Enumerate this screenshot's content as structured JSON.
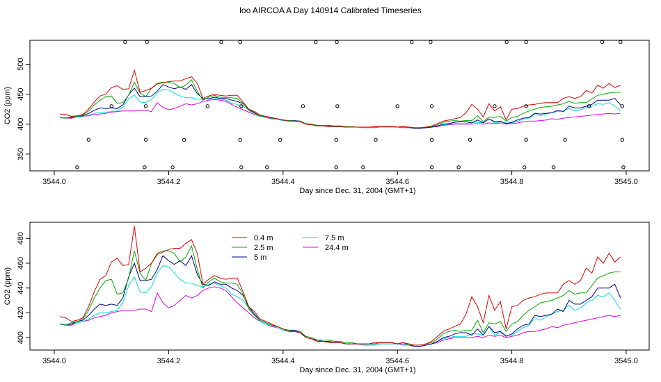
{
  "title": "loo AIRCOA A  Day 140914  Calibrated Timeseries",
  "chart_data": [
    {
      "type": "scatter",
      "panel": "top",
      "xlabel": "Day since Dec. 31, 2004 (GMT+1)",
      "ylabel": "CO2 (ppm)",
      "xlim": [
        3544.0,
        3545.0
      ],
      "ylim": [
        322,
        540
      ],
      "xticks": [
        "3544.0",
        "3544.2",
        "3544.4",
        "3544.6",
        "3544.8",
        "3545.0"
      ],
      "yticks": [
        "350",
        "400",
        "450",
        "500"
      ],
      "markers": [
        {
          "x": 3544.124,
          "y": 537
        },
        {
          "x": 3544.162,
          "y": 537
        },
        {
          "x": 3544.292,
          "y": 537
        },
        {
          "x": 3544.325,
          "y": 537
        },
        {
          "x": 3544.457,
          "y": 537
        },
        {
          "x": 3544.494,
          "y": 537
        },
        {
          "x": 3544.625,
          "y": 537
        },
        {
          "x": 3544.658,
          "y": 537
        },
        {
          "x": 3544.791,
          "y": 537
        },
        {
          "x": 3544.825,
          "y": 537
        },
        {
          "x": 3544.958,
          "y": 537
        },
        {
          "x": 3544.99,
          "y": 537
        },
        {
          "x": 3544.1,
          "y": 430
        },
        {
          "x": 3544.16,
          "y": 430
        },
        {
          "x": 3544.268,
          "y": 430
        },
        {
          "x": 3544.327,
          "y": 430
        },
        {
          "x": 3544.435,
          "y": 430
        },
        {
          "x": 3544.495,
          "y": 430
        },
        {
          "x": 3544.6,
          "y": 430
        },
        {
          "x": 3544.66,
          "y": 430
        },
        {
          "x": 3544.77,
          "y": 430
        },
        {
          "x": 3544.825,
          "y": 430
        },
        {
          "x": 3544.935,
          "y": 430
        },
        {
          "x": 3544.993,
          "y": 430
        },
        {
          "x": 3544.06,
          "y": 374
        },
        {
          "x": 3544.16,
          "y": 374
        },
        {
          "x": 3544.227,
          "y": 374
        },
        {
          "x": 3544.325,
          "y": 374
        },
        {
          "x": 3544.395,
          "y": 374
        },
        {
          "x": 3544.493,
          "y": 374
        },
        {
          "x": 3544.562,
          "y": 374
        },
        {
          "x": 3544.66,
          "y": 374
        },
        {
          "x": 3544.727,
          "y": 374
        },
        {
          "x": 3544.825,
          "y": 374
        },
        {
          "x": 3544.893,
          "y": 374
        },
        {
          "x": 3544.993,
          "y": 374
        },
        {
          "x": 3544.04,
          "y": 328
        },
        {
          "x": 3544.158,
          "y": 328
        },
        {
          "x": 3544.207,
          "y": 328
        },
        {
          "x": 3544.327,
          "y": 328
        },
        {
          "x": 3544.372,
          "y": 328
        },
        {
          "x": 3544.493,
          "y": 328
        },
        {
          "x": 3544.54,
          "y": 328
        },
        {
          "x": 3544.66,
          "y": 328
        },
        {
          "x": 3544.707,
          "y": 328
        },
        {
          "x": 3544.822,
          "y": 328
        },
        {
          "x": 3544.873,
          "y": 328
        },
        {
          "x": 3544.995,
          "y": 328
        }
      ]
    },
    {
      "type": "line",
      "panel": "bottom",
      "xlabel": "Day since Dec. 31, 2004 (GMT+1)",
      "ylabel": "CO2 (ppm)",
      "xlim": [
        3544.0,
        3545.0
      ],
      "ylim": [
        390,
        493
      ],
      "xticks": [
        "3544.0",
        "3544.2",
        "3544.4",
        "3544.6",
        "3544.8",
        "3545.0"
      ],
      "yticks": [
        "400",
        "420",
        "440",
        "460",
        "480"
      ],
      "legend": "top-center",
      "x": [
        3544.01,
        3544.02,
        3544.03,
        3544.04,
        3544.05,
        3544.06,
        3544.07,
        3544.08,
        3544.09,
        3544.1,
        3544.11,
        3544.12,
        3544.13,
        3544.14,
        3544.15,
        3544.16,
        3544.17,
        3544.18,
        3544.19,
        3544.2,
        3544.21,
        3544.22,
        3544.23,
        3544.24,
        3544.25,
        3544.26,
        3544.27,
        3544.28,
        3544.29,
        3544.3,
        3544.31,
        3544.32,
        3544.33,
        3544.34,
        3544.35,
        3544.36,
        3544.37,
        3544.38,
        3544.39,
        3544.4,
        3544.41,
        3544.42,
        3544.43,
        3544.44,
        3544.45,
        3544.46,
        3544.47,
        3544.48,
        3544.49,
        3544.5,
        3544.51,
        3544.52,
        3544.53,
        3544.54,
        3544.55,
        3544.56,
        3544.57,
        3544.58,
        3544.59,
        3544.6,
        3544.61,
        3544.62,
        3544.63,
        3544.64,
        3544.65,
        3544.66,
        3544.67,
        3544.68,
        3544.69,
        3544.7,
        3544.71,
        3544.72,
        3544.73,
        3544.74,
        3544.75,
        3544.76,
        3544.77,
        3544.78,
        3544.79,
        3544.8,
        3544.81,
        3544.82,
        3544.83,
        3544.84,
        3544.85,
        3544.86,
        3544.87,
        3544.88,
        3544.89,
        3544.9,
        3544.91,
        3544.92,
        3544.93,
        3544.94,
        3544.95,
        3544.96,
        3544.97,
        3544.98,
        3544.99
      ],
      "series": [
        {
          "name": "0.4 m",
          "color": "#dd0000",
          "values": [
            417,
            416,
            413,
            414,
            416,
            425,
            437,
            447,
            450,
            461,
            464,
            458,
            459,
            490,
            453,
            456,
            460,
            467,
            469,
            471,
            472,
            472,
            476,
            479,
            468,
            443,
            447,
            450,
            448,
            447,
            448,
            448,
            437,
            425,
            421,
            415,
            413,
            411,
            409,
            407,
            405,
            405,
            404,
            400,
            399,
            397,
            397,
            396,
            396,
            396,
            395,
            395,
            395,
            395,
            395,
            396,
            396,
            396,
            396,
            395,
            396,
            395,
            394,
            394,
            395,
            397,
            401,
            405,
            407,
            409,
            411,
            419,
            433,
            425,
            412,
            434,
            422,
            429,
            407,
            425,
            426,
            430,
            432,
            433,
            435,
            436,
            436,
            436,
            443,
            446,
            443,
            446,
            456,
            452,
            465,
            460,
            468,
            461,
            465
          ]
        },
        {
          "name": "2.5 m",
          "color": "#00aa00",
          "values": [
            411,
            410,
            412,
            413,
            415,
            422,
            432,
            440,
            446,
            447,
            435,
            436,
            448,
            470,
            452,
            446,
            460,
            468,
            470,
            470,
            468,
            461,
            465,
            474,
            455,
            440,
            445,
            448,
            445,
            444,
            444,
            443,
            435,
            423,
            418,
            414,
            412,
            410,
            409,
            407,
            406,
            405,
            405,
            401,
            400,
            398,
            398,
            398,
            397,
            397,
            396,
            396,
            395,
            395,
            395,
            395,
            396,
            396,
            396,
            395,
            396,
            394,
            394,
            394,
            395,
            396,
            399,
            403,
            405,
            406,
            405,
            406,
            406,
            414,
            404,
            412,
            411,
            413,
            405,
            411,
            413,
            418,
            422,
            425,
            428,
            429,
            430,
            432,
            434,
            438,
            435,
            436,
            436,
            442,
            448,
            450,
            452,
            453,
            453
          ]
        },
        {
          "name": "5 m",
          "color": "#000088",
          "values": [
            411,
            410,
            411,
            413,
            414,
            418,
            423,
            427,
            426,
            427,
            426,
            432,
            449,
            460,
            446,
            446,
            447,
            455,
            466,
            462,
            459,
            462,
            458,
            466,
            451,
            443,
            442,
            445,
            443,
            443,
            440,
            438,
            434,
            425,
            419,
            414,
            412,
            410,
            409,
            407,
            406,
            406,
            405,
            400,
            399,
            398,
            397,
            397,
            396,
            396,
            395,
            395,
            395,
            395,
            395,
            395,
            396,
            396,
            396,
            395,
            396,
            394,
            393,
            393,
            394,
            395,
            397,
            400,
            401,
            403,
            404,
            404,
            402,
            407,
            402,
            409,
            404,
            405,
            401,
            403,
            407,
            410,
            411,
            418,
            417,
            418,
            419,
            423,
            421,
            430,
            427,
            427,
            430,
            433,
            440,
            440,
            440,
            443,
            432
          ]
        },
        {
          "name": "7.5 m",
          "color": "#00dddd",
          "values": [
            411,
            411,
            411,
            412,
            413,
            415,
            418,
            420,
            420,
            421,
            422,
            428,
            442,
            449,
            437,
            436,
            441,
            452,
            458,
            457,
            452,
            447,
            444,
            444,
            442,
            441,
            443,
            444,
            442,
            440,
            435,
            433,
            430,
            424,
            418,
            413,
            411,
            410,
            408,
            406,
            405,
            405,
            404,
            400,
            399,
            397,
            397,
            397,
            396,
            396,
            395,
            395,
            395,
            394,
            394,
            394,
            395,
            395,
            395,
            395,
            395,
            394,
            393,
            393,
            394,
            395,
            397,
            399,
            400,
            401,
            401,
            401,
            403,
            403,
            402,
            409,
            402,
            404,
            402,
            402,
            405,
            408,
            410,
            416,
            414,
            417,
            419,
            421,
            422,
            426,
            422,
            424,
            428,
            430,
            434,
            433,
            436,
            430,
            423
          ]
        },
        {
          "name": "24.4 m",
          "color": "#dd00dd",
          "values": [
            411,
            410,
            410,
            412,
            413,
            414,
            416,
            417,
            418,
            420,
            421,
            422,
            422,
            422,
            423,
            423,
            421,
            436,
            428,
            424,
            426,
            430,
            434,
            432,
            434,
            438,
            440,
            441,
            440,
            438,
            433,
            428,
            424,
            420,
            416,
            413,
            411,
            409,
            408,
            406,
            405,
            405,
            404,
            400,
            399,
            397,
            397,
            397,
            396,
            396,
            395,
            395,
            395,
            394,
            394,
            394,
            395,
            395,
            395,
            395,
            394,
            394,
            393,
            393,
            394,
            395,
            396,
            398,
            399,
            400,
            400,
            400,
            400,
            401,
            400,
            402,
            401,
            402,
            400,
            401,
            402,
            404,
            405,
            405,
            406,
            407,
            409,
            408,
            410,
            411,
            412,
            413,
            414,
            415,
            416,
            417,
            418,
            417,
            418
          ]
        }
      ]
    }
  ]
}
